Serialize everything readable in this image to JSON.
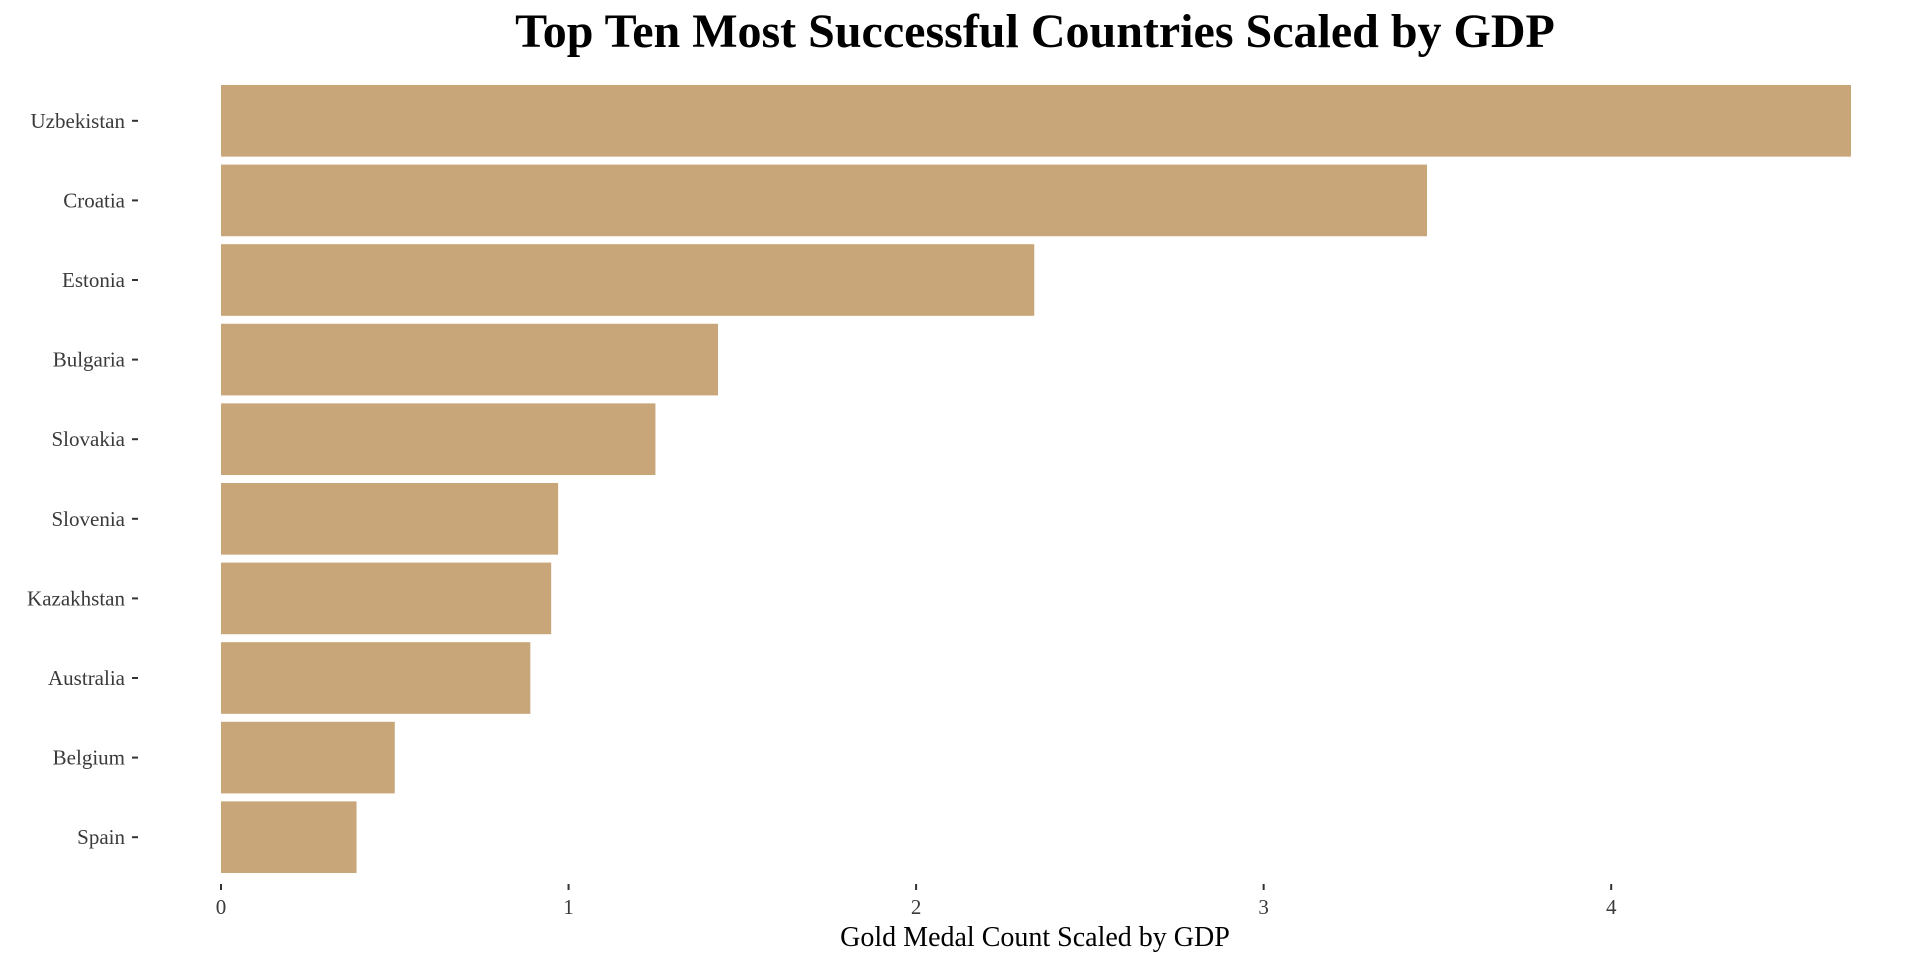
{
  "chart_data": {
    "type": "bar",
    "orientation": "horizontal",
    "title": "Top Ten Most Successful Countries Scaled by GDP",
    "xlabel": "Gold Medal Count Scaled by GDP",
    "ylabel": "",
    "categories": [
      "Uzbekistan",
      "Croatia",
      "Estonia",
      "Bulgaria",
      "Slovakia",
      "Slovenia",
      "Kazakhstan",
      "Australia",
      "Belgium",
      "Spain"
    ],
    "values": [
      4.69,
      3.47,
      2.34,
      1.43,
      1.25,
      0.97,
      0.95,
      0.89,
      0.5,
      0.39
    ],
    "xlim": [
      0,
      4.69
    ],
    "xticks": [
      0,
      1,
      2,
      3,
      4
    ],
    "bar_color": "#c8a679",
    "grid": false,
    "legend": "none"
  }
}
